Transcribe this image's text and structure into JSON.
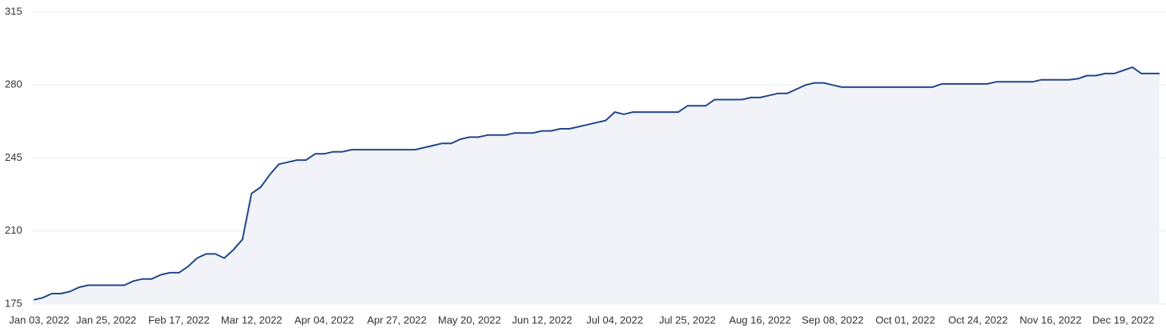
{
  "chart_data": {
    "type": "area",
    "categories": [
      "Jan 03, 2022",
      null,
      null,
      null,
      null,
      null,
      null,
      null,
      "Jan 25, 2022",
      null,
      null,
      null,
      null,
      null,
      null,
      null,
      "Feb 17, 2022",
      null,
      null,
      null,
      null,
      null,
      null,
      null,
      "Mar 12, 2022",
      null,
      null,
      null,
      null,
      null,
      null,
      null,
      "Apr 04, 2022",
      null,
      null,
      null,
      null,
      null,
      null,
      null,
      "Apr 27, 2022",
      null,
      null,
      null,
      null,
      null,
      null,
      null,
      "May 20, 2022",
      null,
      null,
      null,
      null,
      null,
      null,
      null,
      "Jun 12, 2022",
      null,
      null,
      null,
      null,
      null,
      null,
      null,
      "Jul 04, 2022",
      null,
      null,
      null,
      null,
      null,
      null,
      null,
      "Jul 25, 2022",
      null,
      null,
      null,
      null,
      null,
      null,
      null,
      "Aug 16, 2022",
      null,
      null,
      null,
      null,
      null,
      null,
      null,
      "Sep 08, 2022",
      null,
      null,
      null,
      null,
      null,
      null,
      null,
      "Oct 01, 2022",
      null,
      null,
      null,
      null,
      null,
      null,
      null,
      "Oct 24, 2022",
      null,
      null,
      null,
      null,
      null,
      null,
      null,
      "Nov 16, 2022",
      null,
      null,
      null,
      null,
      null,
      null,
      null,
      "Dec 19, 2022",
      null,
      null,
      null,
      null
    ],
    "values": [
      177,
      178,
      180,
      180,
      181,
      183,
      184,
      184,
      184,
      184,
      184,
      186,
      187,
      187,
      189,
      190,
      190,
      193,
      197,
      199,
      199,
      197,
      201,
      206,
      228,
      231,
      237,
      242,
      243,
      244,
      244,
      247,
      247,
      248,
      248,
      249,
      249,
      249,
      249,
      249,
      249,
      249,
      249,
      250,
      251,
      252,
      252,
      254,
      255,
      255,
      256,
      256,
      256,
      257,
      257,
      257,
      258,
      258,
      259,
      259,
      260,
      261,
      262,
      263,
      267,
      266,
      267,
      267,
      267,
      267,
      267,
      267,
      270,
      270,
      270,
      273,
      273,
      273,
      273,
      274,
      274,
      275,
      276,
      276,
      278,
      280,
      281,
      281,
      280,
      279,
      279,
      279,
      279,
      279,
      279,
      279,
      279,
      279,
      279,
      279,
      280.5,
      280.5,
      280.5,
      280.5,
      280.5,
      280.5,
      281.5,
      281.5,
      281.5,
      281.5,
      281.5,
      282.5,
      282.5,
      282.5,
      282.5,
      283,
      284.5,
      284.5,
      285.5,
      285.5,
      287,
      288.5,
      285.5,
      285.5,
      285.5
    ],
    "color": "#24478a",
    "fill": "#f1f3f8",
    "ylim": [
      175,
      315
    ],
    "yticks": [
      175,
      210,
      245,
      280,
      315
    ],
    "grid": true
  }
}
